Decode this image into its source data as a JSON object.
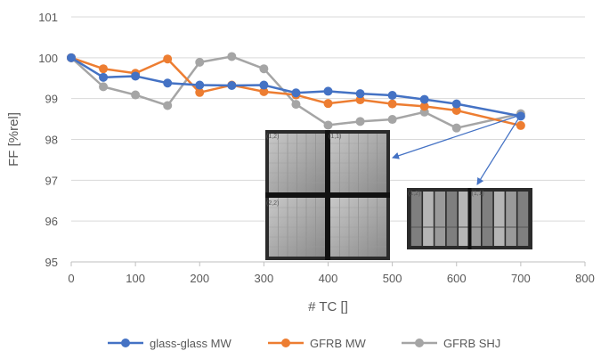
{
  "chart_data": {
    "type": "line",
    "xlabel": "# TC []",
    "ylabel": "FF [%rel]",
    "xlim": [
      0,
      800
    ],
    "ylim": [
      95,
      101
    ],
    "xticks": [
      0,
      100,
      200,
      300,
      400,
      500,
      600,
      700,
      800
    ],
    "yticks": [
      95,
      96,
      97,
      98,
      99,
      100,
      101
    ],
    "grid": "horizontal",
    "legend": "bottom",
    "series": [
      {
        "name": "glass-glass MW",
        "color": "#4472C4",
        "x": [
          0,
          50,
          100,
          150,
          200,
          250,
          300,
          350,
          400,
          450,
          500,
          550,
          600,
          700
        ],
        "y": [
          100.0,
          99.52,
          99.55,
          99.38,
          99.33,
          99.32,
          99.33,
          99.14,
          99.18,
          99.12,
          99.08,
          98.98,
          98.87,
          98.57
        ]
      },
      {
        "name": "GFRB MW",
        "color": "#ED7D31",
        "x": [
          0,
          50,
          100,
          150,
          200,
          250,
          300,
          350,
          400,
          450,
          500,
          550,
          600,
          700
        ],
        "y": [
          100.0,
          99.73,
          99.62,
          99.97,
          99.15,
          99.33,
          99.17,
          99.09,
          98.88,
          98.97,
          98.87,
          98.81,
          98.71,
          98.34
        ]
      },
      {
        "name": "GFRB SHJ",
        "color": "#A5A5A5",
        "x": [
          0,
          50,
          100,
          150,
          200,
          250,
          300,
          350,
          400,
          450,
          500,
          550,
          600,
          700
        ],
        "y": [
          100.0,
          99.29,
          99.09,
          98.83,
          99.89,
          100.03,
          99.73,
          98.86,
          98.35,
          98.44,
          98.49,
          98.67,
          98.28,
          98.63
        ]
      }
    ],
    "insets": [
      {
        "name": "inset-module-glass",
        "labels": [
          "(1,2)",
          "(1,1)",
          "(2,2)"
        ]
      },
      {
        "name": "inset-module-shj",
        "labels": [
          "(1,2)",
          "(1,1)"
        ]
      }
    ]
  }
}
